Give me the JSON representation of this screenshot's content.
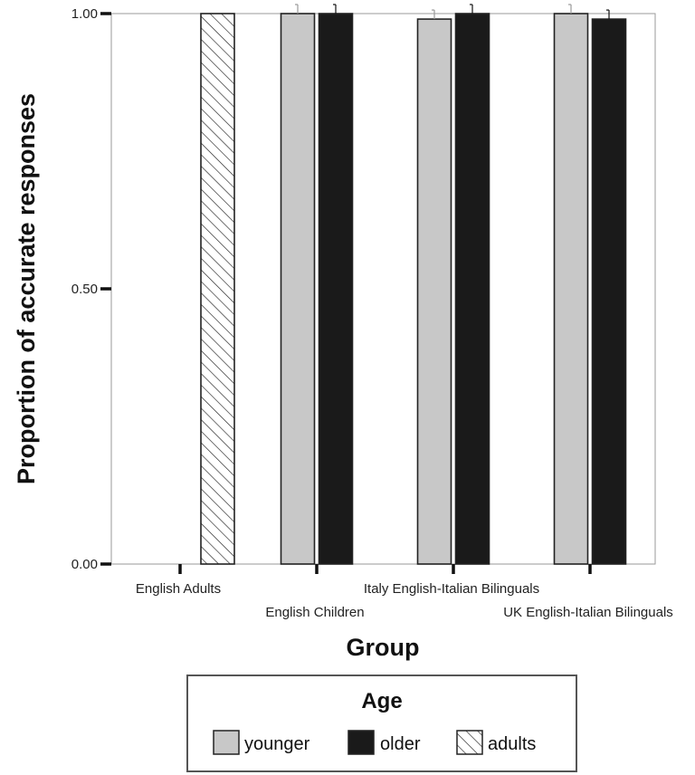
{
  "chart_data": {
    "type": "bar",
    "title": "",
    "xlabel": "Group",
    "ylabel": "Proportion of accurate responses",
    "ylim": [
      0,
      1
    ],
    "yticks": [
      "0.00",
      "0.50",
      "1.00"
    ],
    "categories": [
      "English Adults",
      "English Children",
      "Italy English-Italian Bilinguals",
      "UK English-Italian Bilinguals"
    ],
    "series": [
      {
        "name": "younger",
        "values": [
          null,
          1.0,
          0.99,
          1.0
        ],
        "color": "#c8c8c8"
      },
      {
        "name": "older",
        "values": [
          null,
          1.0,
          1.0,
          0.99
        ],
        "color": "#1a1a1a"
      },
      {
        "name": "adults",
        "values": [
          1.0,
          null,
          null,
          null
        ],
        "color": "#ffffff",
        "pattern": "hatch"
      }
    ],
    "legend": {
      "title": "Age",
      "position": "bottom"
    },
    "grid": false
  }
}
